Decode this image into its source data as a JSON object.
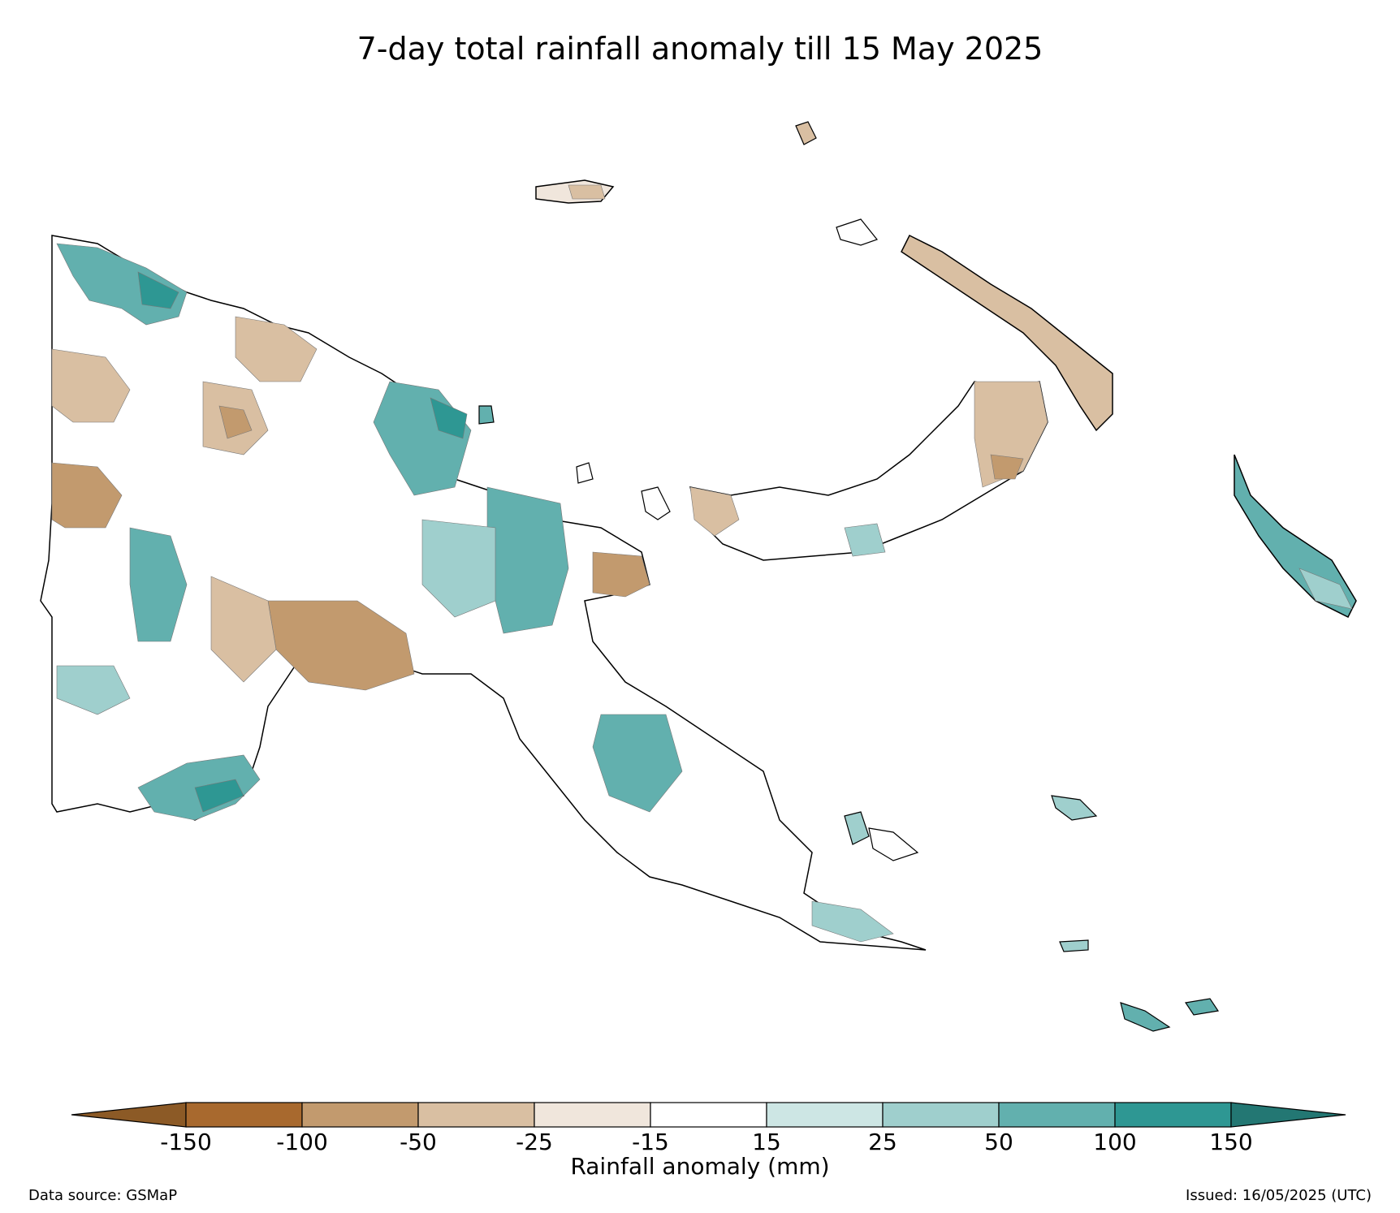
{
  "title": "7-day total rainfall anomaly till 15 May 2025",
  "colorbar": {
    "label": "Rainfall anomaly (mm)",
    "ticks": [
      "-150",
      "-100",
      "-50",
      "-25",
      "-15",
      "15",
      "25",
      "50",
      "100",
      "150"
    ],
    "colors": [
      "#a8692e",
      "#c29a6e",
      "#d9bfa2",
      "#f0e6dc",
      "#ffffff",
      "#cde6e4",
      "#9fcfcd",
      "#62b0ae",
      "#2e9793"
    ],
    "under_color": "#8c5a26",
    "over_color": "#237773"
  },
  "footer": {
    "source": "Data source: GSMaP",
    "issued": "Issued: 16/05/2025 (UTC)"
  }
}
